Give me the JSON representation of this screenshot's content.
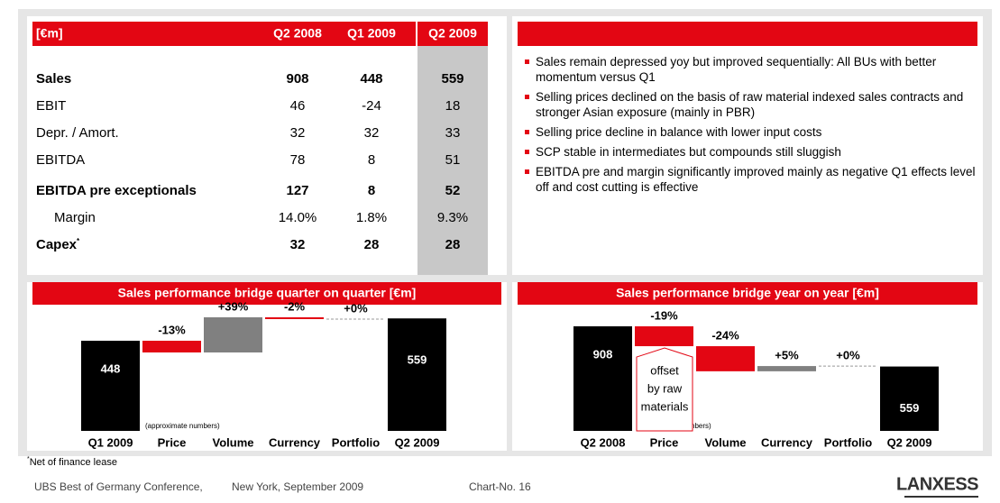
{
  "table": {
    "header": [
      "[€m]",
      "Q2 2008",
      "Q1 2009",
      "Q2 2009"
    ],
    "rows": [
      [
        "Sales",
        "908",
        "448",
        "559"
      ],
      [
        "EBIT",
        "46",
        "-24",
        "18"
      ],
      [
        "Depr. / Amort.",
        "32",
        "32",
        "33"
      ],
      [
        "EBITDA",
        "78",
        "8",
        "51"
      ],
      [
        "EBITDA pre exceptionals",
        "127",
        "8",
        "52"
      ],
      [
        "Margin",
        "14.0%",
        "1.8%",
        "9.3%"
      ],
      [
        "Capex",
        "32",
        "28",
        "28"
      ]
    ],
    "footnote_mark": "*"
  },
  "bullets": [
    "Sales remain depressed yoy but improved sequentially: All BUs with better momentum versus Q1",
    "Selling prices declined on the basis of raw material indexed sales contracts and stronger Asian exposure (mainly in PBR)",
    "Selling price decline in balance with lower input costs",
    "SCP stable in intermediates but compounds still sluggish",
    "EBITDA pre and margin significantly improved mainly as negative Q1 effects level off and cost cutting is effective"
  ],
  "bridges": [
    {
      "title": "Sales performance bridge quarter on quarter [€m]",
      "categories": [
        "Q1 2009",
        "Price",
        "Volume",
        "Currency",
        "Portfolio",
        "Q2 2009"
      ],
      "values": [
        448,
        -13,
        39,
        -2,
        0,
        559
      ],
      "value_labels": [
        "448",
        "-13%",
        "+39%",
        "-2%",
        "+0%",
        "559"
      ],
      "note": "(approximate numbers)"
    },
    {
      "title": "Sales performance bridge year on year [€m]",
      "categories": [
        "Q2 2008",
        "Price",
        "Volume",
        "Currency",
        "Portfolio",
        "Q2 2009"
      ],
      "values": [
        908,
        -19,
        -24,
        5,
        0,
        559
      ],
      "value_labels": [
        "908",
        "-19%",
        "-24%",
        "+5%",
        "+0%",
        "559"
      ],
      "note": "(approximate numbers)",
      "callout": [
        "offset",
        "by raw",
        "materials"
      ]
    }
  ],
  "footnote": {
    "mark": "*",
    "text": "Net of finance lease"
  },
  "footer": {
    "event": "UBS Best of Germany Conference,",
    "place": "New York, September 2009",
    "chart_no": "Chart-No. 16",
    "logo": "LANXESS"
  }
}
